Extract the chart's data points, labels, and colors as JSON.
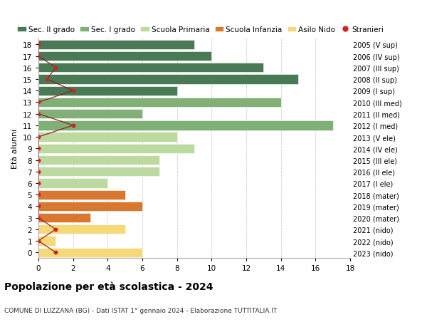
{
  "ages": [
    18,
    17,
    16,
    15,
    14,
    13,
    12,
    11,
    10,
    9,
    8,
    7,
    6,
    5,
    4,
    3,
    2,
    1,
    0
  ],
  "years_labels": [
    "2005 (V sup)",
    "2006 (IV sup)",
    "2007 (III sup)",
    "2008 (II sup)",
    "2009 (I sup)",
    "2010 (III med)",
    "2011 (II med)",
    "2012 (I med)",
    "2013 (V ele)",
    "2014 (IV ele)",
    "2015 (III ele)",
    "2016 (II ele)",
    "2017 (I ele)",
    "2018 (mater)",
    "2019 (mater)",
    "2020 (mater)",
    "2021 (nido)",
    "2022 (nido)",
    "2023 (nido)"
  ],
  "bar_values": [
    9,
    10,
    13,
    15,
    8,
    14,
    6,
    17,
    8,
    9,
    7,
    7,
    4,
    5,
    6,
    3,
    5,
    1,
    6
  ],
  "bar_colors": [
    "#4a7a55",
    "#4a7a55",
    "#4a7a55",
    "#4a7a55",
    "#4a7a55",
    "#80b075",
    "#80b075",
    "#80b075",
    "#bcd9a0",
    "#bcd9a0",
    "#bcd9a0",
    "#bcd9a0",
    "#bcd9a0",
    "#d87830",
    "#d87830",
    "#d87830",
    "#f5d878",
    "#f5d878",
    "#f5d878"
  ],
  "stranieri_ages": [
    18,
    17,
    16,
    15,
    14,
    13,
    12,
    11,
    10,
    9,
    8,
    7,
    6,
    5,
    4,
    3,
    2,
    1,
    0
  ],
  "stranieri_x": [
    0,
    0,
    1,
    0.5,
    2,
    0,
    0,
    2,
    0,
    0,
    0,
    0,
    0,
    0,
    0,
    0,
    1,
    0,
    1
  ],
  "legend_labels": [
    "Sec. II grado",
    "Sec. I grado",
    "Scuola Primaria",
    "Scuola Infanzia",
    "Asilo Nido",
    "Stranieri"
  ],
  "legend_colors": [
    "#4a7a55",
    "#80b075",
    "#bcd9a0",
    "#d87830",
    "#f5d878",
    "#cc2222"
  ],
  "ylabel": "Età alunni",
  "title": "Popolazione per età scolastica - 2024",
  "subtitle": "COMUNE DI LUZZANA (BG) - Dati ISTAT 1° gennaio 2024 - Elaborazione TUTTITALIA.IT",
  "xlim": [
    0,
    18
  ],
  "grid_color": "#cccccc"
}
